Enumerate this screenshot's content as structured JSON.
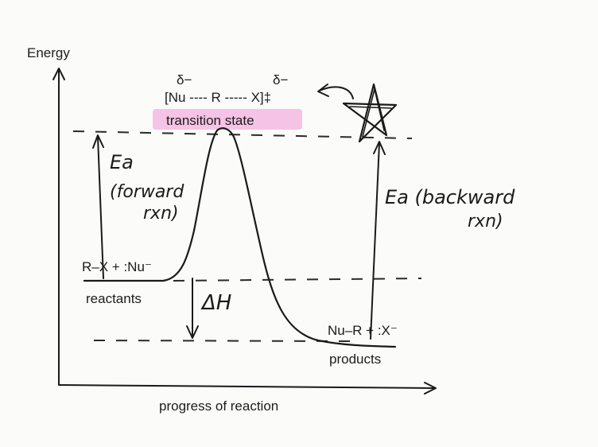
{
  "axes": {
    "y_label": "Energy",
    "x_label": "progress of reaction"
  },
  "transition_state": {
    "delta_left": "δ−",
    "delta_right": "δ−",
    "complex_text": "[Nu ---- R ----- X]‡",
    "label": "transition state",
    "highlight_color": "#f2b8e0"
  },
  "reactants": {
    "formula": "R–X + :Nu⁻",
    "label": "reactants"
  },
  "products": {
    "formula": "Nu–R + :X⁻",
    "label": "products"
  },
  "annotations": {
    "ea_forward_line1": "Ea",
    "ea_forward_line2": "(forward",
    "ea_forward_line3": "rxn)",
    "ea_backward_line1": "Ea (backward",
    "ea_backward_line2": "rxn)",
    "delta_h": "ΔH",
    "star_icon": "star-icon",
    "pointer_icon": "curved-arrow-icon"
  }
}
